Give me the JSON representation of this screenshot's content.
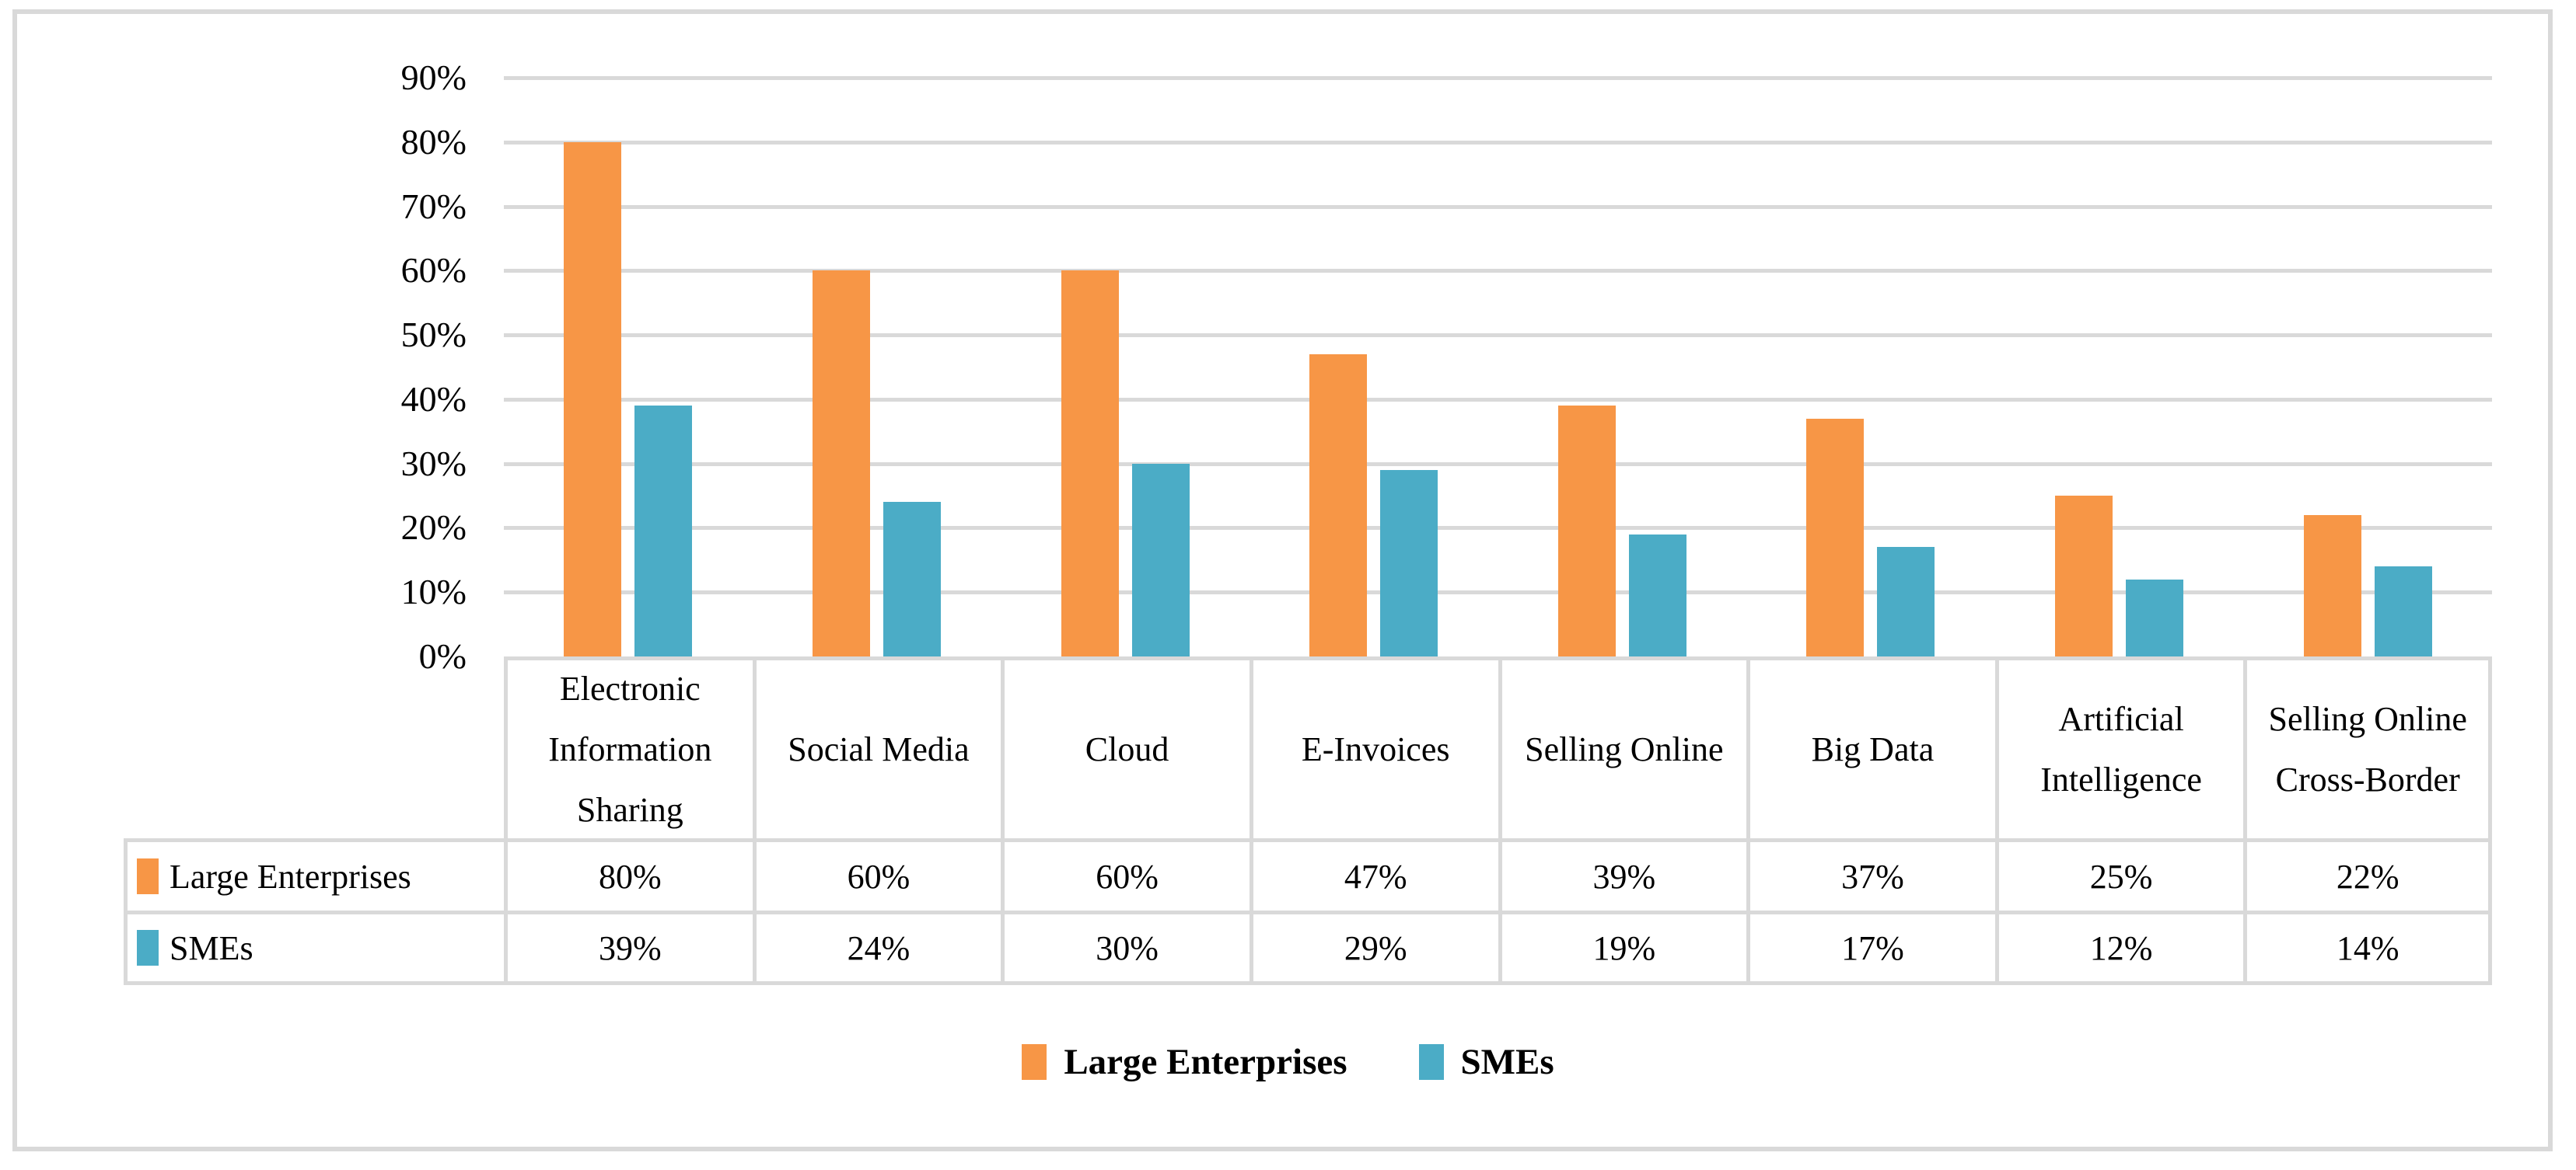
{
  "chart_data": {
    "type": "bar",
    "categories": [
      "Electronic Information Sharing",
      "Social Media",
      "Cloud",
      "E-Invoices",
      "Selling Online",
      "Big Data",
      "Artificial Intelligence",
      "Selling Online Cross-Border"
    ],
    "series": [
      {
        "name": "Large Enterprises",
        "color": "#F79646",
        "values": [
          80,
          60,
          60,
          47,
          39,
          37,
          25,
          22
        ]
      },
      {
        "name": "SMEs",
        "color": "#4BACC6",
        "values": [
          39,
          24,
          30,
          29,
          19,
          17,
          12,
          14
        ]
      }
    ],
    "title": "",
    "xlabel": "",
    "ylabel": "",
    "ylim": [
      0,
      90
    ],
    "yticks": [
      "90%",
      "80%",
      "70%",
      "60%",
      "50%",
      "40%",
      "30%",
      "20%",
      "10%",
      "0%"
    ],
    "grid": "horizontal",
    "gridline_color": "#d9d9d9",
    "legend_position": "bottom",
    "data_table_shown": true
  },
  "table": {
    "rows": [
      {
        "label": "Large Enterprises",
        "values": [
          "80%",
          "60%",
          "60%",
          "47%",
          "39%",
          "37%",
          "25%",
          "22%"
        ]
      },
      {
        "label": "SMEs",
        "values": [
          "39%",
          "24%",
          "30%",
          "29%",
          "19%",
          "17%",
          "12%",
          "14%"
        ]
      }
    ]
  },
  "legend": {
    "items": [
      {
        "label": "Large Enterprises",
        "swatch": "orange-square"
      },
      {
        "label": "SMEs",
        "swatch": "teal-square"
      }
    ]
  }
}
